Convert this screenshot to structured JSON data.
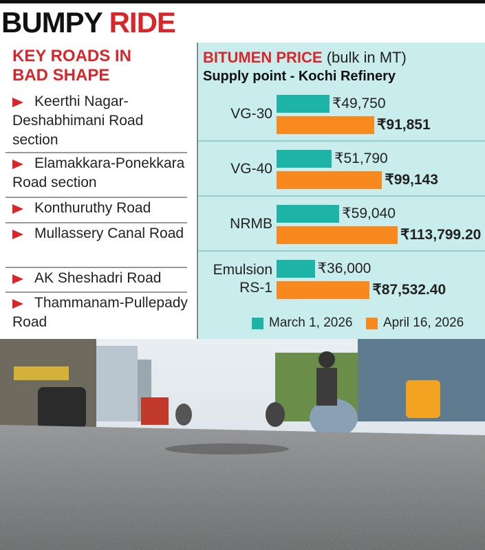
{
  "header": {
    "title_black": "BUMPY",
    "title_red": "RIDE"
  },
  "roads": {
    "title": "KEY ROADS IN BAD SHAPE",
    "items": [
      "Keerthi Nagar-Deshabhimani Road section",
      "Elamakkara-Ponekkara Road section",
      "Konthuruthy Road",
      "Mullassery Canal Road",
      "AK Sheshadri Road",
      "Thammanam-Pullepady Road"
    ]
  },
  "chart_data": {
    "type": "bar",
    "orientation": "horizontal",
    "title": "BITUMEN PRICE",
    "title_note": "(bulk in MT)",
    "subtitle": "Supply point - Kochi Refinery",
    "categories": [
      "VG-30",
      "VG-40",
      "NRMB",
      "Emulsion RS-1"
    ],
    "series": [
      {
        "name": "March 1, 2026",
        "color": "#1db3a6",
        "values": [
          49750,
          51790,
          59040,
          36000
        ],
        "value_labels": [
          "₹49,750",
          "₹51,790",
          "₹59,040",
          "₹36,000"
        ]
      },
      {
        "name": "April 16, 2026",
        "color": "#f7891f",
        "values": [
          91851,
          99143,
          113799.2,
          87532.4
        ],
        "value_labels": [
          "₹91,851",
          "₹99,143",
          "₹113,799.20",
          "₹87,532.40"
        ]
      }
    ],
    "legend": "bottom"
  }
}
